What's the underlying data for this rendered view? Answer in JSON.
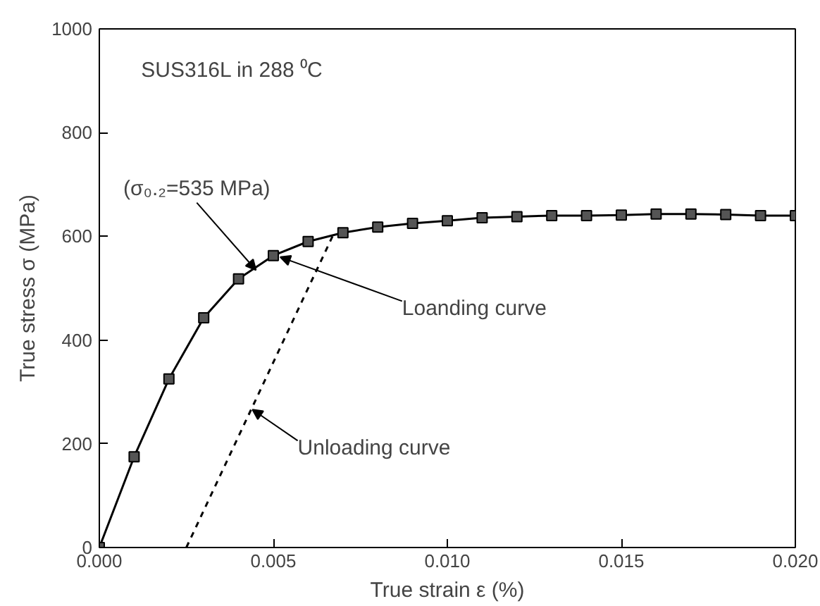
{
  "chart_data": {
    "type": "line",
    "xlabel": "True strain ε (%)",
    "ylabel": "True stress σ (MPa)",
    "xlim": [
      0,
      0.02
    ],
    "ylim": [
      0,
      1000
    ],
    "xticks": [
      {
        "value": 0,
        "label": "0.000"
      },
      {
        "value": 0.005,
        "label": "0.005"
      },
      {
        "value": 0.01,
        "label": "0.010"
      },
      {
        "value": 0.015,
        "label": "0.015"
      },
      {
        "value": 0.02,
        "label": "0.020"
      }
    ],
    "yticks": [
      0,
      200,
      400,
      600,
      800,
      1000
    ],
    "grid": false,
    "series": [
      {
        "color": "#000000",
        "marker": "square",
        "line_style": "solid",
        "x": [
          0,
          0.001,
          0.002,
          0.003,
          0.004,
          0.005,
          0.006,
          0.007,
          0.008,
          0.009,
          0.01,
          0.011,
          0.012,
          0.013,
          0.014,
          0.015,
          0.016,
          0.017,
          0.018,
          0.019,
          0.02
        ],
        "values": [
          0,
          175,
          325,
          443,
          518,
          563,
          590,
          607,
          618,
          625,
          630,
          636,
          638,
          640,
          640,
          641,
          643,
          643,
          642,
          640,
          640
        ]
      },
      {
        "color": "#000000",
        "marker": "none",
        "line_style": "dashed",
        "x": [
          0.0025,
          0.0067
        ],
        "values": [
          0,
          600
        ]
      }
    ],
    "annotations": [
      "SUS316L in 288 ⁰C",
      {
        "text": "(σ₀.₂=535 MPa)",
        "x": 0.0045,
        "y": 535
      },
      {
        "text": "Loanding curve",
        "x": 0.0052,
        "y": 560
      },
      {
        "text": "Unloading curve",
        "x": 0.0044,
        "y": 266
      }
    ]
  }
}
